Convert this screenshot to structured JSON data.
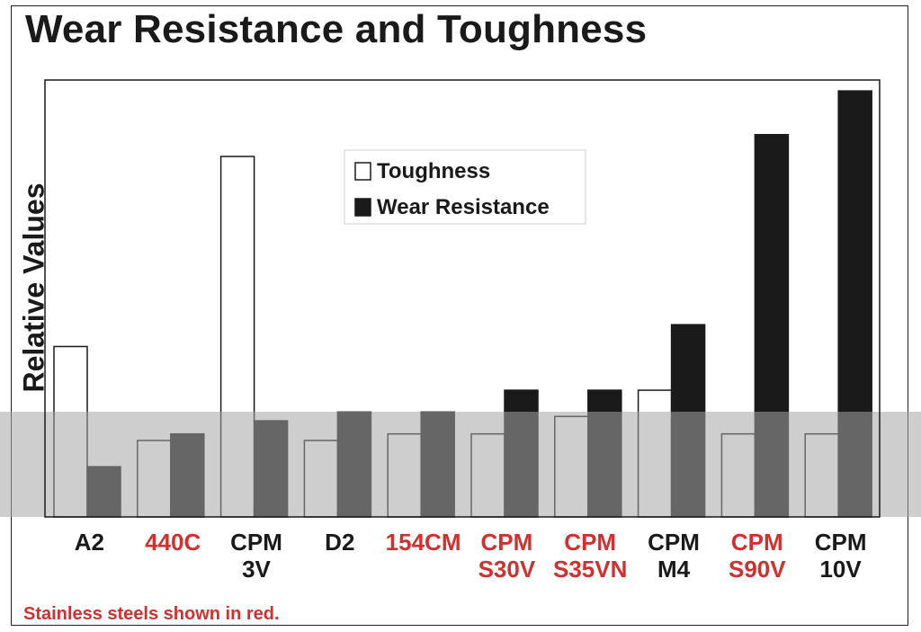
{
  "chart_data": {
    "type": "bar",
    "title": "Wear Resistance and Toughness",
    "ylabel": "Relative Values",
    "ylim": [
      0,
      10
    ],
    "categories": [
      {
        "lines": [
          "A2"
        ],
        "stainless": false
      },
      {
        "lines": [
          "440C"
        ],
        "stainless": true
      },
      {
        "lines": [
          "CPM",
          "3V"
        ],
        "stainless": false
      },
      {
        "lines": [
          "D2"
        ],
        "stainless": false
      },
      {
        "lines": [
          "154CM"
        ],
        "stainless": true
      },
      {
        "lines": [
          "CPM",
          "S30V"
        ],
        "stainless": true
      },
      {
        "lines": [
          "CPM",
          "S35VN"
        ],
        "stainless": true
      },
      {
        "lines": [
          "CPM",
          "M4"
        ],
        "stainless": false
      },
      {
        "lines": [
          "CPM",
          "S90V"
        ],
        "stainless": true
      },
      {
        "lines": [
          "CPM",
          "10V"
        ],
        "stainless": false
      }
    ],
    "series": [
      {
        "name": "Toughness",
        "color": "#ffffff",
        "values": [
          3.9,
          1.75,
          8.25,
          1.75,
          1.9,
          1.9,
          2.3,
          2.9,
          1.9,
          1.9
        ]
      },
      {
        "name": "Wear Resistance",
        "color": "#1a1a1a",
        "values": [
          1.15,
          1.9,
          2.2,
          2.4,
          2.4,
          2.9,
          2.9,
          4.4,
          8.75,
          9.75
        ]
      }
    ],
    "legend_position": "top-center",
    "grid": false,
    "footnote": "Stainless steels shown in red."
  },
  "colors": {
    "stainless_label": "#d32f2f",
    "standard_label": "#1a1a1a",
    "band_overlay": "#a6a6a6"
  }
}
